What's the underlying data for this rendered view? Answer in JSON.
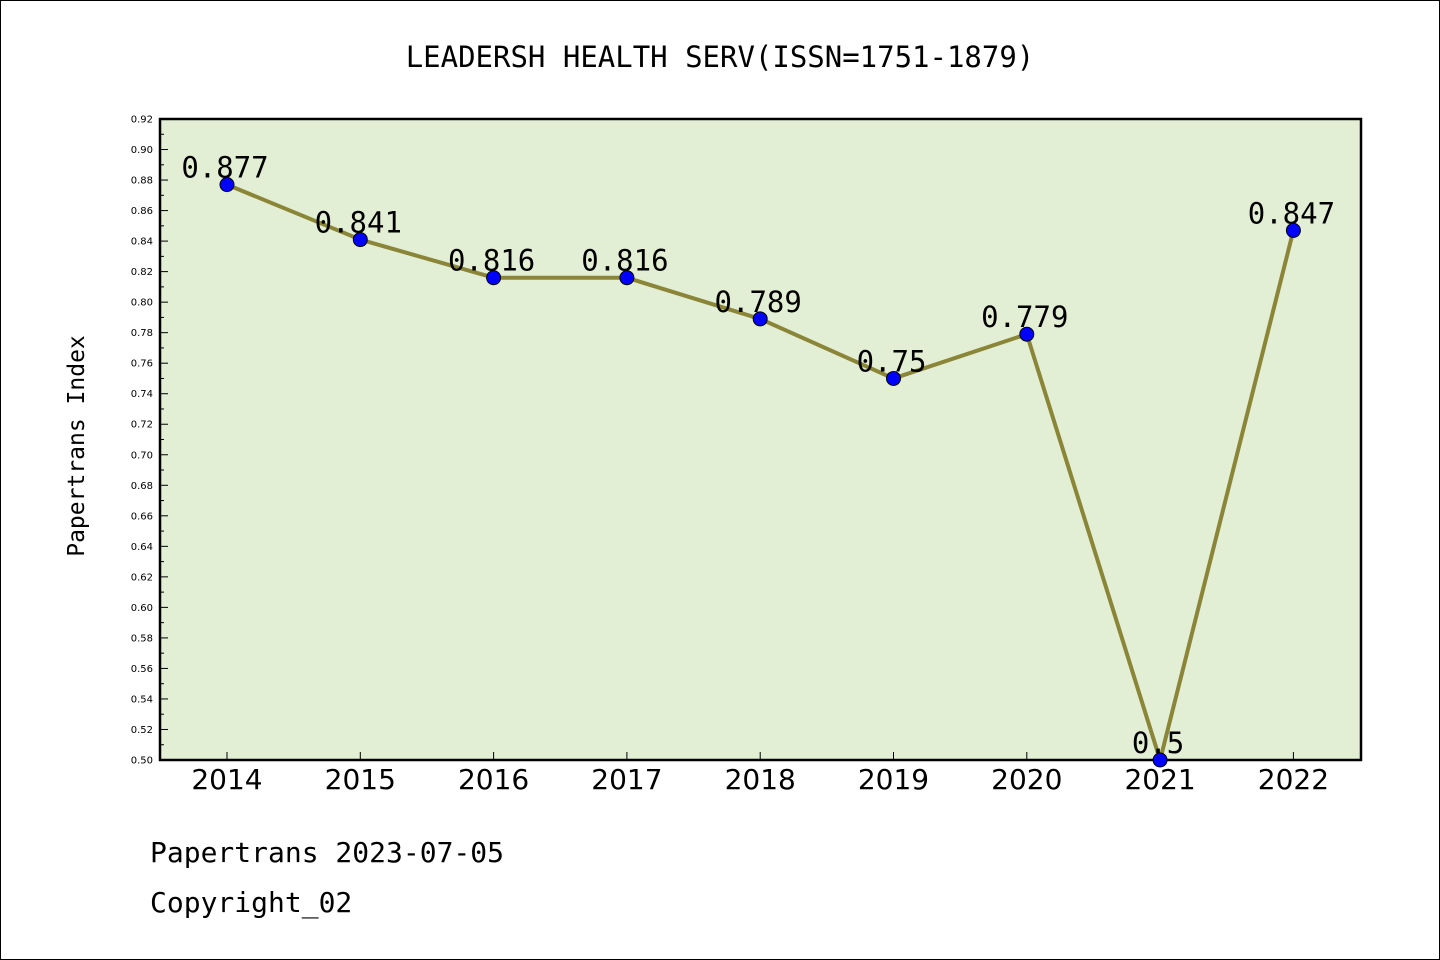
{
  "chart_data": {
    "type": "line",
    "title": "LEADERSH HEALTH SERV(ISSN=1751-1879)",
    "ylabel": "Papertrans Index",
    "xlabel": "",
    "categories": [
      "2014",
      "2015",
      "2016",
      "2017",
      "2018",
      "2019",
      "2020",
      "2021",
      "2022"
    ],
    "values": [
      0.877,
      0.841,
      0.816,
      0.816,
      0.789,
      0.75,
      0.779,
      0.5,
      0.847
    ],
    "data_labels": [
      "0.877",
      "0.841",
      "0.816",
      "0.816",
      "0.789",
      "0.75",
      "0.779",
      "0.5",
      "0.847"
    ],
    "ylim": [
      0.5,
      0.92
    ],
    "yticks": [
      "0.50",
      "0.52",
      "0.54",
      "0.56",
      "0.58",
      "0.60",
      "0.62",
      "0.64",
      "0.66",
      "0.68",
      "0.70",
      "0.72",
      "0.74",
      "0.76",
      "0.78",
      "0.80",
      "0.82",
      "0.84",
      "0.86",
      "0.88",
      "0.90",
      "0.92"
    ],
    "grid": false,
    "colors": {
      "plot_background": "#e2efd5",
      "line": "#8b8538",
      "marker": "#0000ff"
    }
  },
  "footer": {
    "line1": "Papertrans 2023-07-05",
    "line2": "Copyright_02"
  }
}
